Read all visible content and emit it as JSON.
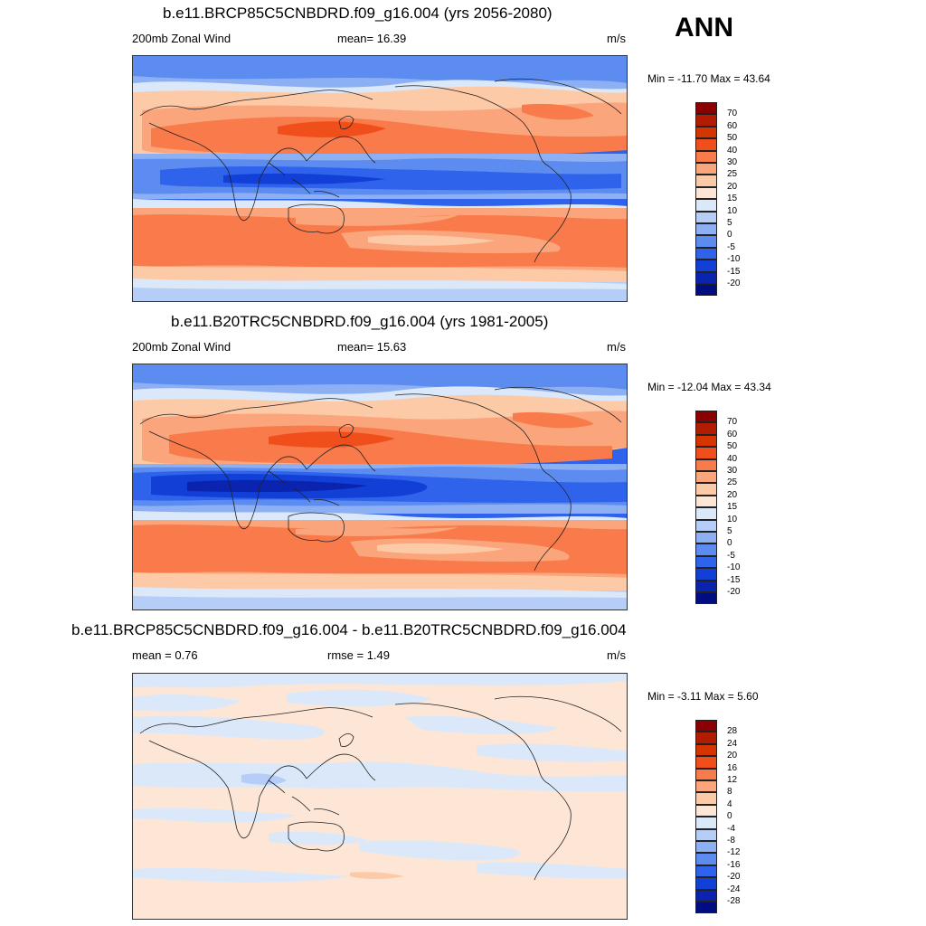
{
  "season": "ANN",
  "panels": [
    {
      "title": "b.e11.BRCP85C5CNBDRD.f09_g16.004 (yrs 2056-2080)",
      "left_label": "200mb Zonal Wind",
      "center_label": "mean=  16.39",
      "units": "m/s",
      "minmax": "Min = -11.70 Max =  43.64",
      "colorbar": {
        "levels": [
          "70",
          "60",
          "50",
          "40",
          "30",
          "25",
          "20",
          "15",
          "10",
          "5",
          "0",
          "-5",
          "-10",
          "-15",
          "-20"
        ],
        "colors": [
          "#8b0000",
          "#b31c00",
          "#d63500",
          "#f04f1c",
          "#f97a4a",
          "#fba57c",
          "#fdcaa8",
          "#fde6d6",
          "#dbe8fa",
          "#b5cdf7",
          "#8cb0f3",
          "#5c8cef",
          "#2f63eb",
          "#123fd6",
          "#0a24b0",
          "#000d80"
        ]
      }
    },
    {
      "title": "b.e11.B20TRC5CNBDRD.f09_g16.004 (yrs 1981-2005)",
      "left_label": "200mb Zonal Wind",
      "center_label": "mean=  15.63",
      "units": "m/s",
      "minmax": "Min = -12.04 Max =  43.34",
      "colorbar": {
        "levels": [
          "70",
          "60",
          "50",
          "40",
          "30",
          "25",
          "20",
          "15",
          "10",
          "5",
          "0",
          "-5",
          "-10",
          "-15",
          "-20"
        ],
        "colors": [
          "#8b0000",
          "#b31c00",
          "#d63500",
          "#f04f1c",
          "#f97a4a",
          "#fba57c",
          "#fdcaa8",
          "#fde6d6",
          "#dbe8fa",
          "#b5cdf7",
          "#8cb0f3",
          "#5c8cef",
          "#2f63eb",
          "#123fd6",
          "#0a24b0",
          "#000d80"
        ]
      }
    },
    {
      "title": "b.e11.BRCP85C5CNBDRD.f09_g16.004 - b.e11.B20TRC5CNBDRD.f09_g16.004",
      "left_label": "mean =   0.76",
      "center_label": "rmse =   1.49",
      "units": "m/s",
      "minmax": "Min =  -3.11 Max =   5.60",
      "colorbar": {
        "levels": [
          "28",
          "24",
          "20",
          "16",
          "12",
          "8",
          "4",
          "0",
          "-4",
          "-8",
          "-12",
          "-16",
          "-20",
          "-24",
          "-28"
        ],
        "colors": [
          "#8b0000",
          "#b31c00",
          "#d63500",
          "#f04f1c",
          "#f97a4a",
          "#fba57c",
          "#fdcaa8",
          "#fde6d6",
          "#dbe8fa",
          "#b5cdf7",
          "#8cb0f3",
          "#5c8cef",
          "#2f63eb",
          "#123fd6",
          "#0a24b0",
          "#000d80"
        ]
      }
    }
  ]
}
